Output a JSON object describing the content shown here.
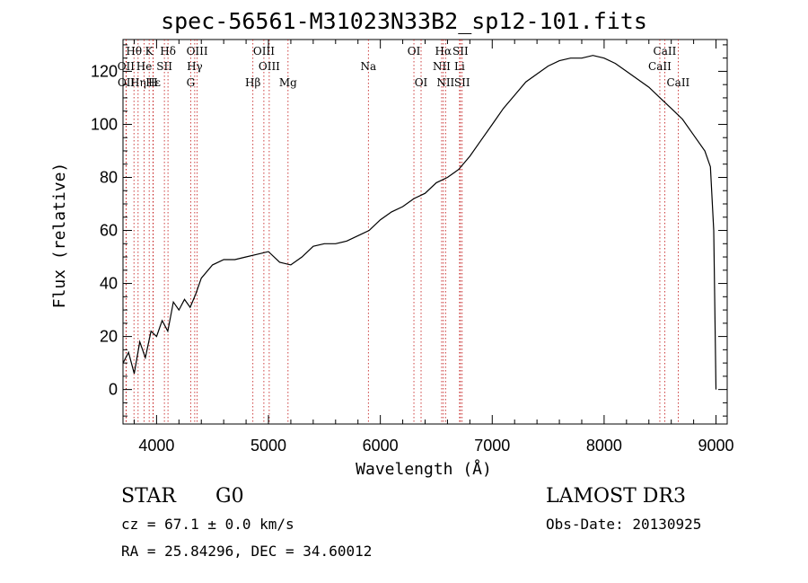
{
  "chart_data": {
    "type": "line",
    "title": "spec-56561-M31023N33B2_sp12-101.fits",
    "xlabel": "Wavelength (Å)",
    "ylabel": "Flux (relative)",
    "xlim": [
      3700,
      9100
    ],
    "ylim": [
      -13,
      132
    ],
    "xticks": [
      4000,
      5000,
      6000,
      7000,
      8000,
      9000
    ],
    "yticks": [
      0,
      20,
      40,
      60,
      80,
      100,
      120
    ],
    "series": [
      {
        "name": "flux",
        "x": [
          3700,
          3750,
          3800,
          3850,
          3900,
          3950,
          4000,
          4050,
          4100,
          4150,
          4200,
          4250,
          4300,
          4350,
          4400,
          4500,
          4600,
          4700,
          4800,
          4900,
          5000,
          5100,
          5200,
          5300,
          5400,
          5500,
          5600,
          5700,
          5800,
          5900,
          6000,
          6100,
          6200,
          6300,
          6400,
          6500,
          6600,
          6700,
          6800,
          6900,
          7000,
          7100,
          7200,
          7300,
          7400,
          7500,
          7600,
          7700,
          7800,
          7900,
          8000,
          8100,
          8200,
          8300,
          8400,
          8500,
          8600,
          8700,
          8800,
          8900,
          8950,
          8980,
          9000
        ],
        "y": [
          10,
          14,
          6,
          18,
          12,
          22,
          20,
          26,
          22,
          33,
          30,
          34,
          31,
          36,
          42,
          47,
          49,
          49,
          50,
          51,
          52,
          48,
          47,
          50,
          54,
          55,
          55,
          56,
          58,
          60,
          64,
          67,
          69,
          72,
          74,
          78,
          80,
          83,
          88,
          94,
          100,
          106,
          111,
          116,
          119,
          122,
          124,
          125,
          125,
          126,
          125,
          123,
          120,
          117,
          114,
          110,
          106,
          102,
          96,
          90,
          84,
          60,
          0
        ]
      }
    ],
    "lines": [
      {
        "label": "Hθ",
        "x": 3798
      },
      {
        "label": "K",
        "x": 3934
      },
      {
        "label": "Hδ",
        "x": 4102
      },
      {
        "label": "OIII",
        "x": 4363
      },
      {
        "label": "OIII",
        "x": 4959
      },
      {
        "label": "OI",
        "x": 6300
      },
      {
        "label": "Hα",
        "x": 6563
      },
      {
        "label": "SII",
        "x": 6716
      },
      {
        "label": "CaII",
        "x": 8542
      },
      {
        "label": "OII",
        "x": 3727
      },
      {
        "label": "He",
        "x": 3889
      },
      {
        "label": "SII",
        "x": 4070
      },
      {
        "label": "Hγ",
        "x": 4341
      },
      {
        "label": "OIII",
        "x": 5007
      },
      {
        "label": "Na",
        "x": 5893
      },
      {
        "label": "NII",
        "x": 6548
      },
      {
        "label": "Li",
        "x": 6708
      },
      {
        "label": "CaII",
        "x": 8498
      },
      {
        "label": "OII",
        "x": 3729
      },
      {
        "label": "Hε",
        "x": 3970
      },
      {
        "label": "Hη",
        "x": 3835
      },
      {
        "label": "H",
        "x": 3968
      },
      {
        "label": "G",
        "x": 4305
      },
      {
        "label": "Hβ",
        "x": 4861
      },
      {
        "label": "Mg",
        "x": 5175
      },
      {
        "label": "OI",
        "x": 6364
      },
      {
        "label": "NII",
        "x": 6583
      },
      {
        "label": "SII",
        "x": 6731
      },
      {
        "label": "CaII",
        "x": 8662
      }
    ]
  },
  "info": {
    "class": "STAR",
    "subclass": "G0",
    "survey": "LAMOST DR3",
    "cz": "cz = 67.1 ± 0.0 km/s",
    "obs_date": "Obs-Date: 20130925",
    "coords": "RA =  25.84296, DEC =  34.60012"
  },
  "colors": {
    "spectrum": "#000000",
    "line_markers": "#c01010",
    "frame": "#000000"
  }
}
